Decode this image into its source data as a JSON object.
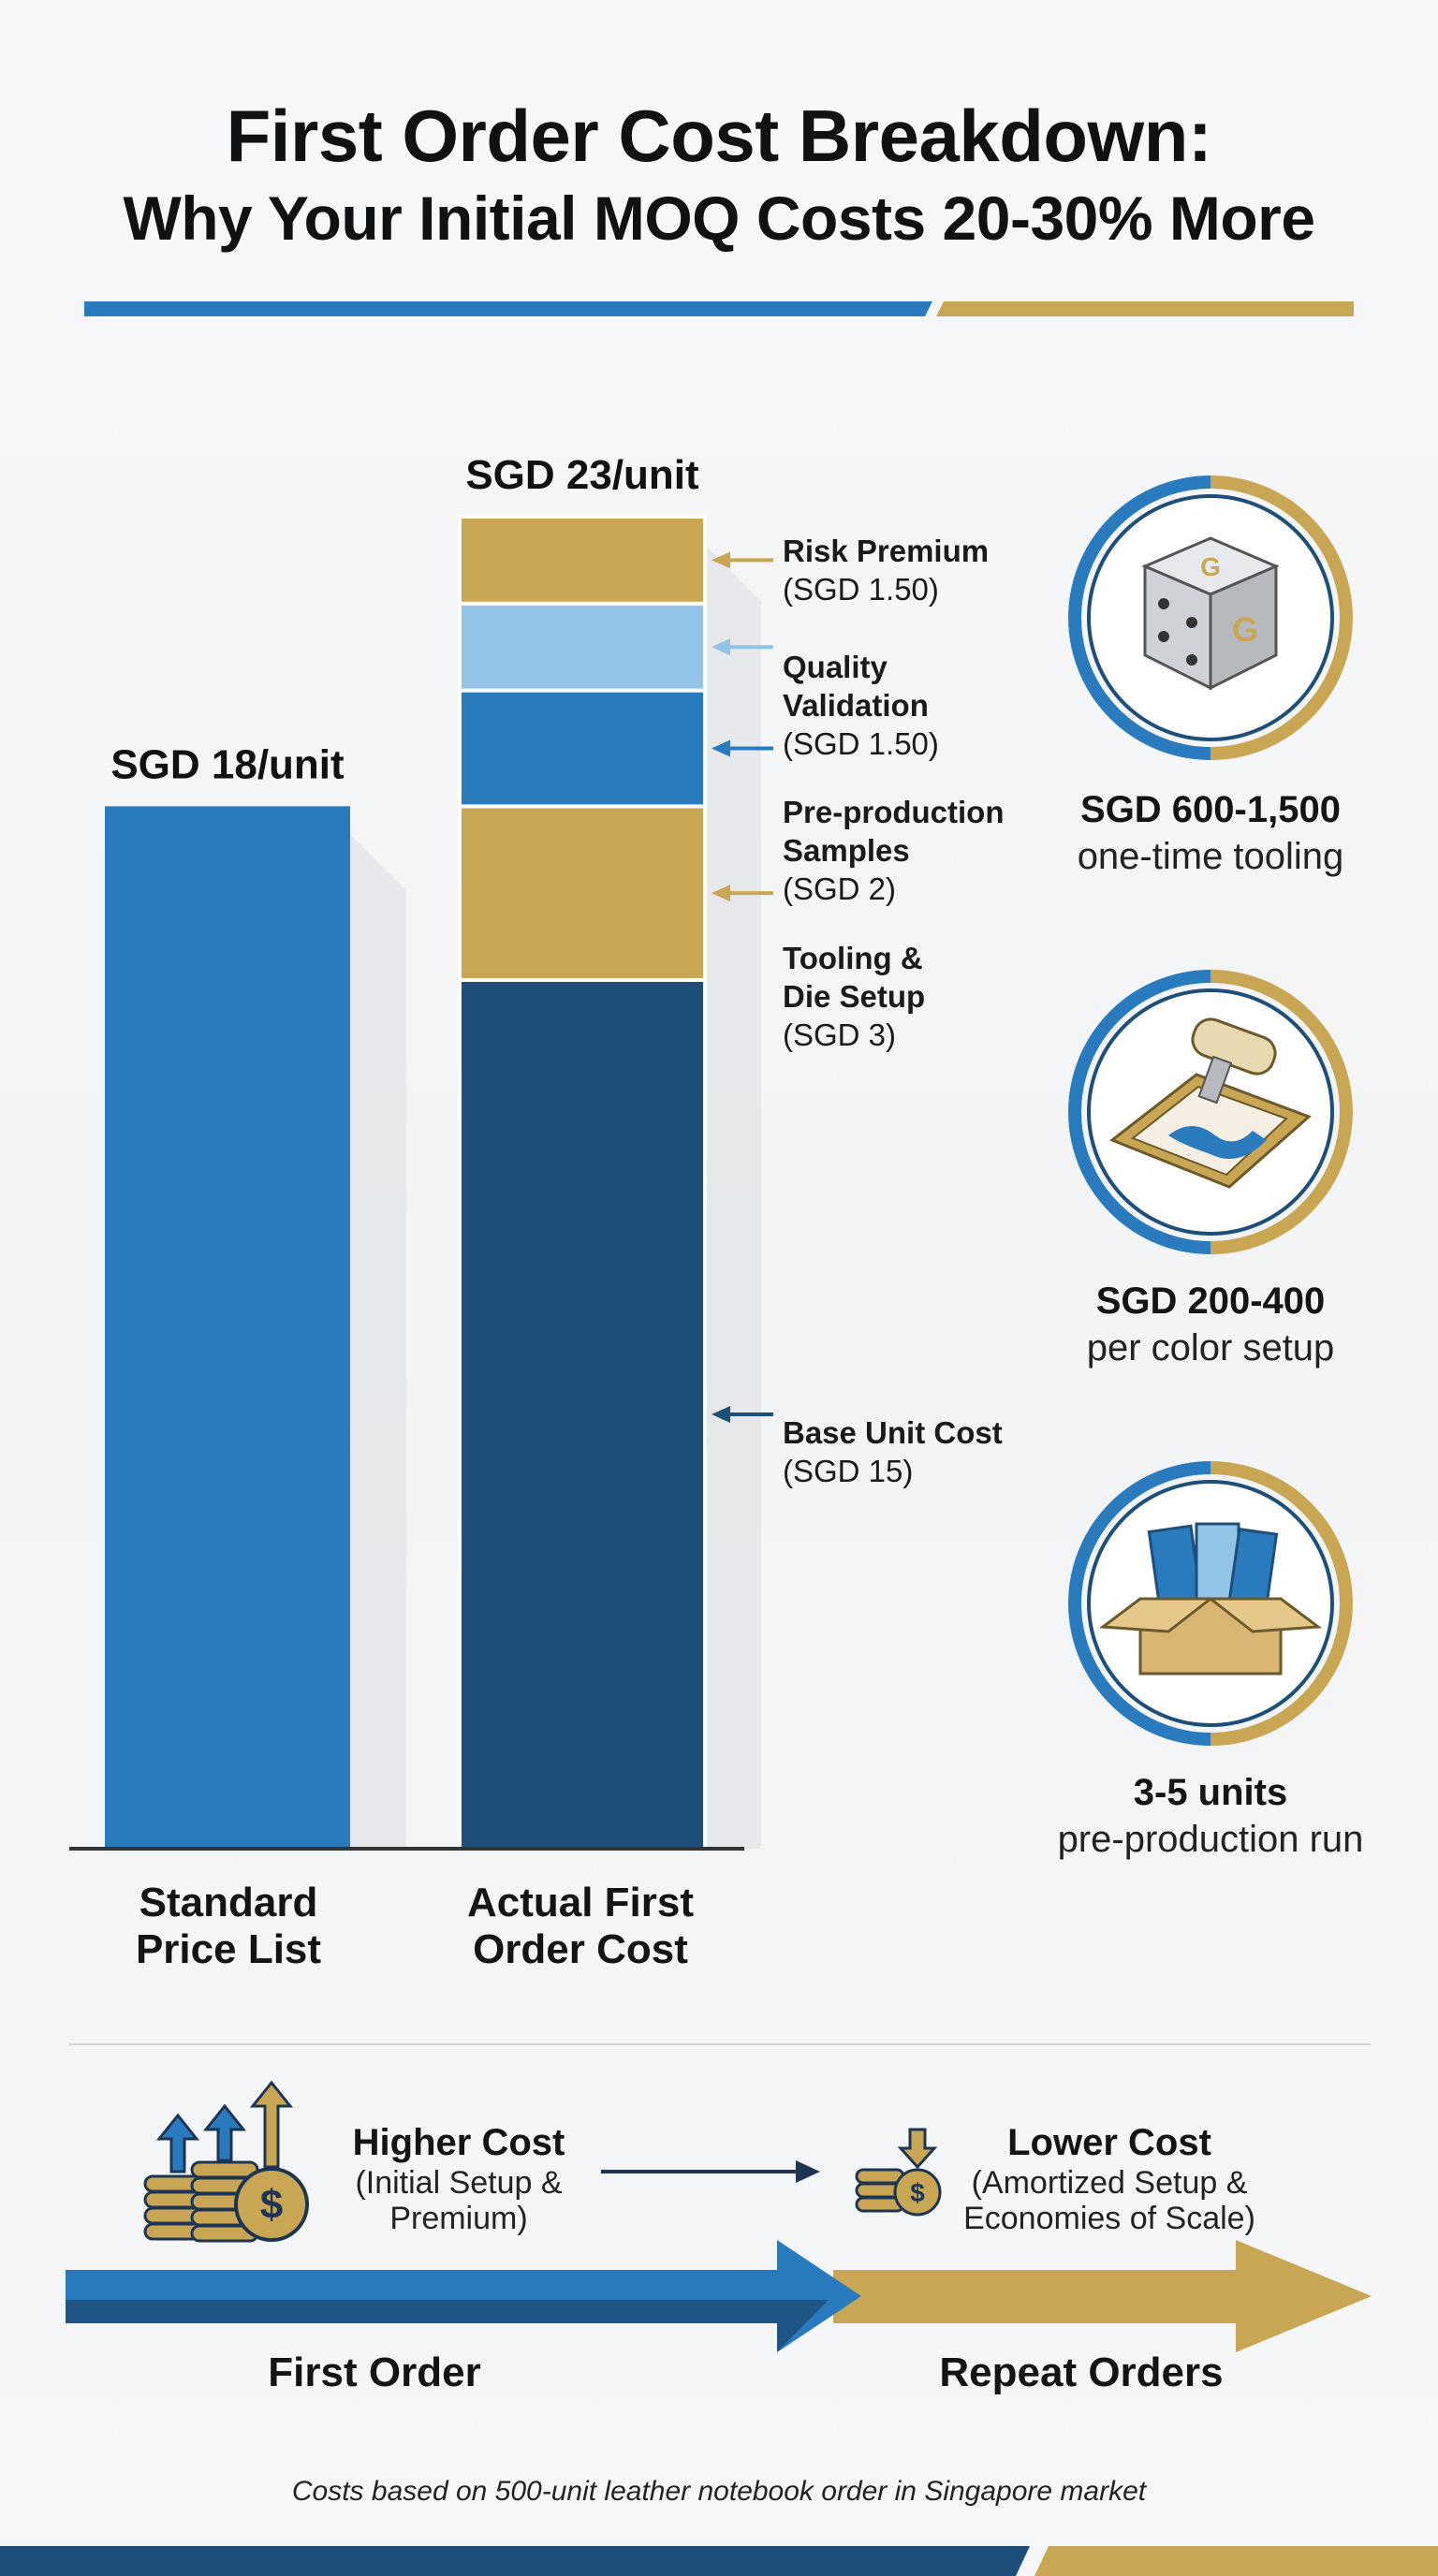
{
  "title": {
    "main": "First Order Cost Breakdown:",
    "subtitle": "Why Your Initial MOQ Costs 20-30% More"
  },
  "colors": {
    "blue": "#2a7bbd",
    "dark_blue": "#1d4f7a",
    "gold": "#c9a654",
    "light_blue": "#93c3e6",
    "accent_blue": "#2a7bbd",
    "accent_gold": "#c9a654"
  },
  "chart_data": {
    "type": "bar",
    "title": "First Order Cost Breakdown: Why Your Initial MOQ Costs 20-30% More",
    "categories": [
      "Standard Price List",
      "Actual First Order Cost"
    ],
    "category_labels": [
      [
        "Standard",
        "Price List"
      ],
      [
        "Actual First",
        "Order Cost"
      ]
    ],
    "totals": [
      18,
      23
    ],
    "total_labels": [
      "SGD 18/unit",
      "SGD 23/unit"
    ],
    "unit": "SGD/unit",
    "ylim": [
      0,
      23
    ],
    "series": [
      {
        "name": "Standard Price",
        "values": [
          18,
          0
        ],
        "color": "#2a7bbd"
      },
      {
        "name": "Base Unit Cost",
        "values": [
          0,
          15
        ],
        "color": "#1d4f7a"
      },
      {
        "name": "Tooling & Die Setup",
        "values": [
          0,
          3
        ],
        "color": "#c9a654"
      },
      {
        "name": "Pre-production Samples",
        "values": [
          0,
          2
        ],
        "color": "#2a7bbd"
      },
      {
        "name": "Quality Validation",
        "values": [
          0,
          1.5
        ],
        "color": "#93c3e6"
      },
      {
        "name": "Risk Premium",
        "values": [
          0,
          1.5
        ],
        "color": "#c9a654"
      }
    ]
  },
  "annotations": [
    {
      "id": "risk-premium",
      "label": "Risk Premium",
      "value": "(SGD 1.50)",
      "arrow": "gold"
    },
    {
      "id": "quality-validation",
      "label": "Quality Validation",
      "value": "(SGD 1.50)",
      "arrow": "light"
    },
    {
      "id": "pre-production-samples",
      "label": "Pre-production Samples",
      "value": "(SGD 2)",
      "arrow": "blue"
    },
    {
      "id": "tooling-die-setup",
      "label": "Tooling & Die Setup",
      "value": "(SGD 3)",
      "arrow": "gold"
    },
    {
      "id": "base-unit-cost",
      "label": "Base Unit Cost",
      "value": "(SGD 15)",
      "arrow": "dark"
    }
  ],
  "stats": [
    {
      "icon": "dice-icon",
      "value": "SGD 600-1,500",
      "label": "one-time tooling"
    },
    {
      "icon": "screen-print-icon",
      "value": "SGD 200-400",
      "label": "per color setup"
    },
    {
      "icon": "sample-box-icon",
      "value": "3-5 units",
      "label": "pre-production run"
    }
  ],
  "comparison": {
    "first": {
      "title": "Higher Cost",
      "desc_1": "(Initial Setup &",
      "desc_2": "Premium)",
      "order_label": "First Order"
    },
    "repeat": {
      "title": "Lower Cost",
      "desc_1": "(Amortized Setup &",
      "desc_2": "Economies of Scale)",
      "order_label": "Repeat Orders"
    }
  },
  "footnote": "Costs based on 500-unit leather notebook order in Singapore market"
}
